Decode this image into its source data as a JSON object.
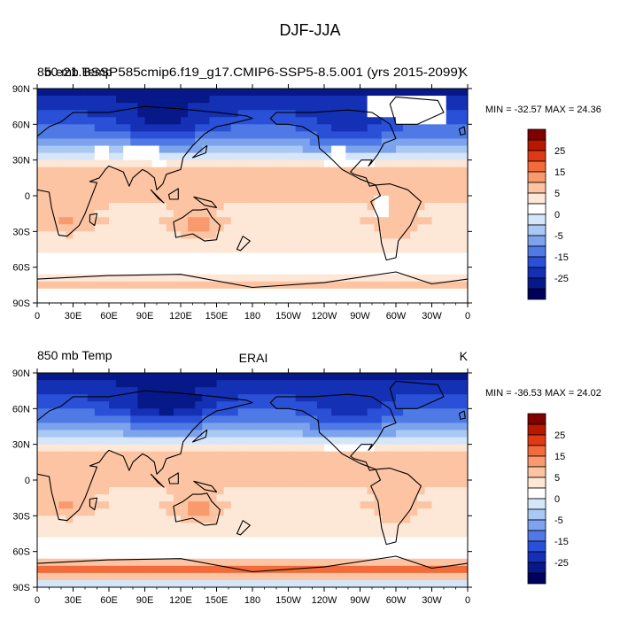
{
  "figure": {
    "title": "DJF-JJA"
  },
  "chart_data": [
    {
      "type": "heatmap",
      "left_title": "850 mb Temp",
      "center_title": "b.e21.BSSP585cmip6.f19_g17.CMIP6-SSP5-8.5.001 (yrs 2015-2099)",
      "units": "K",
      "stats": "MIN = -32.57 MAX =  24.36",
      "x_ticks": [
        "0",
        "30E",
        "60E",
        "90E",
        "120E",
        "150E",
        "180",
        "150W",
        "120W",
        "90W",
        "60W",
        "30W",
        "0"
      ],
      "y_ticks": [
        "90N",
        "60N",
        "30N",
        "0",
        "30S",
        "60S",
        "90S"
      ],
      "xlim": [
        0,
        360
      ],
      "ylim": [
        -90,
        90
      ],
      "missing_data": true
    },
    {
      "type": "heatmap",
      "left_title": "850 mb Temp",
      "center_title": "ERAI",
      "units": "K",
      "stats": "MIN = -36.53 MAX =  24.02",
      "x_ticks": [
        "0",
        "30E",
        "60E",
        "90E",
        "120E",
        "150E",
        "180",
        "150W",
        "120W",
        "90W",
        "60W",
        "30W",
        "0"
      ],
      "y_ticks": [
        "90N",
        "60N",
        "30N",
        "0",
        "30S",
        "60S",
        "90S"
      ],
      "xlim": [
        0,
        360
      ],
      "ylim": [
        -90,
        90
      ],
      "missing_data": false
    }
  ],
  "colorbar": {
    "labels": [
      "25",
      "15",
      "5",
      "0",
      "-5",
      "-15",
      "-25"
    ],
    "colors": [
      "#7f0000",
      "#b81800",
      "#e03a15",
      "#f26b3a",
      "#f99a6e",
      "#fcc4a2",
      "#fde7d6",
      "#ffffff",
      "#d6e6fa",
      "#a9c8f3",
      "#7ca3ec",
      "#4f7ae6",
      "#2a50d8",
      "#1430b4",
      "#071989",
      "#00005c"
    ]
  }
}
